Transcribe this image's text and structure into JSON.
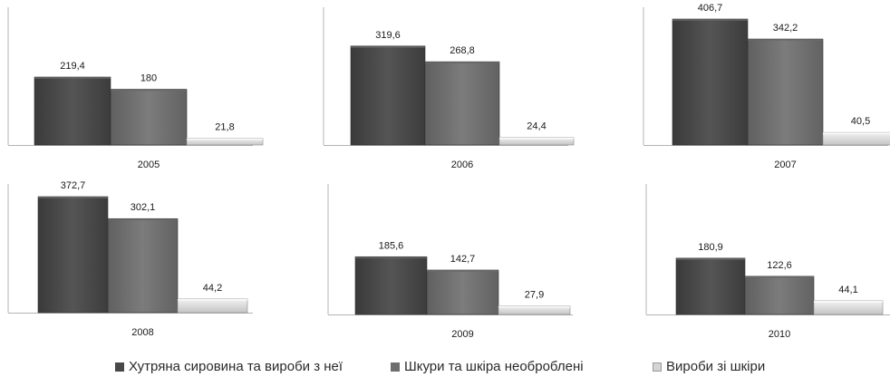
{
  "chart_data": {
    "type": "bar",
    "series_names": [
      "Хутряна сировина та вироби з неї",
      "Шкури та шкіра необроблені",
      "Вироби зі шкіри"
    ],
    "colors": {
      "series1": "#484848",
      "series2": "#6e6e6e",
      "series3": "#dcdcdc",
      "axis": "#b4b4b4",
      "label": "#1a1a1a"
    },
    "grid": false,
    "legend_position": "bottom",
    "panels": [
      {
        "year": "2005",
        "values": [
          219.4,
          180,
          21.8
        ],
        "labels": [
          "219,4",
          "180",
          "21,8"
        ]
      },
      {
        "year": "2006",
        "values": [
          319.6,
          268.8,
          24.4
        ],
        "labels": [
          "319,6",
          "268,8",
          "24,4"
        ]
      },
      {
        "year": "2007",
        "values": [
          406.7,
          342.2,
          40.5
        ],
        "labels": [
          "406,7",
          "342,2",
          "40,5"
        ]
      },
      {
        "year": "2008",
        "values": [
          372.7,
          302.1,
          44.2
        ],
        "labels": [
          "372,7",
          "302,1",
          "44,2"
        ]
      },
      {
        "year": "2009",
        "values": [
          185.6,
          142.7,
          27.9
        ],
        "labels": [
          "185,6",
          "142,7",
          "27,9"
        ]
      },
      {
        "year": "2010",
        "values": [
          180.9,
          122.6,
          44.1
        ],
        "labels": [
          "180,9",
          "122,6",
          "44,1"
        ]
      }
    ]
  }
}
